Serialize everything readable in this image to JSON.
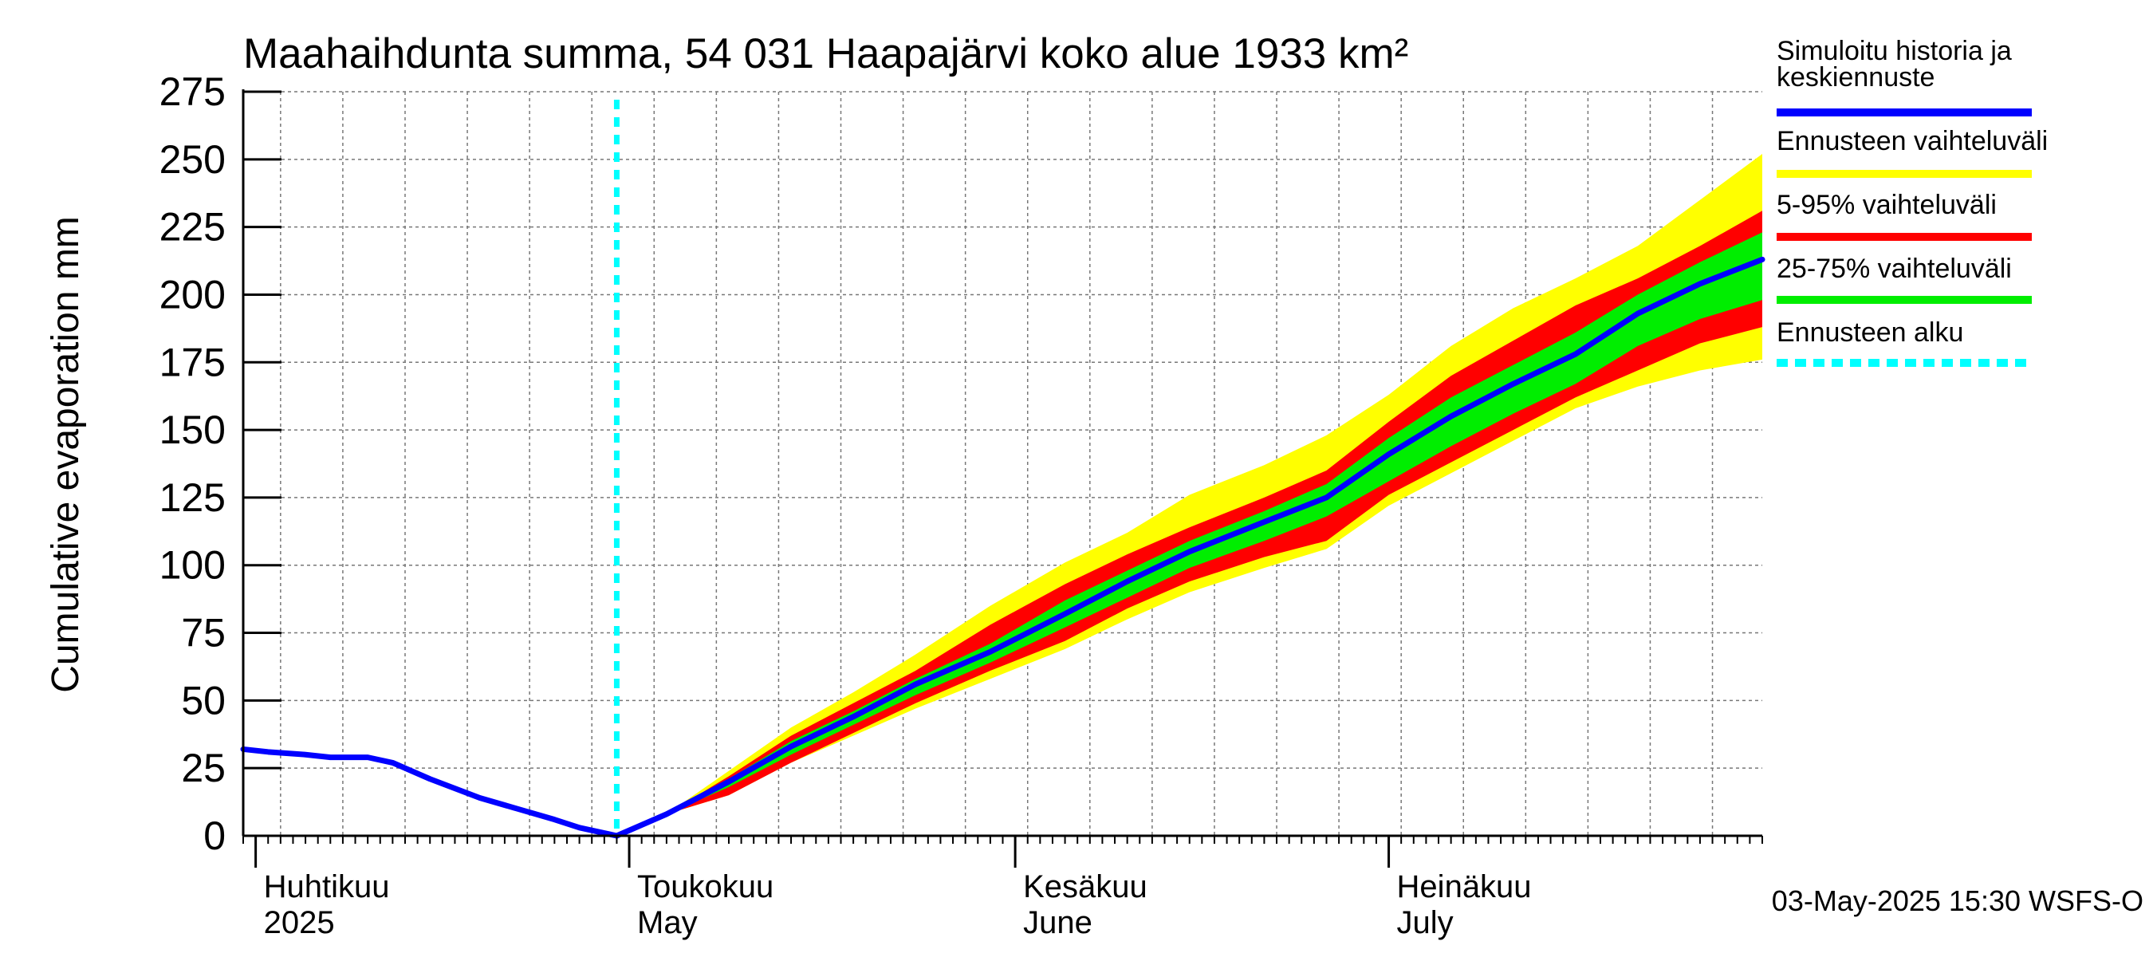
{
  "chart_data": {
    "type": "area",
    "title": "Maahaihdunta summa, 54 031 Haapajärvi koko alue 1933 km²",
    "ylabel": "Cumulative evaporation   mm",
    "xlabel": "",
    "ylim": [
      0,
      275
    ],
    "yticks": [
      0,
      25,
      50,
      75,
      100,
      125,
      150,
      175,
      200,
      225,
      250,
      275
    ],
    "xlim": [
      "2025-03-31",
      "2025-07-31"
    ],
    "x_month_labels": [
      {
        "date": "2025-04-01",
        "line1": "Huhtikuu",
        "line2": "2025"
      },
      {
        "date": "2025-05-01",
        "line1": "Toukokuu",
        "line2": "May"
      },
      {
        "date": "2025-06-01",
        "line1": "Kesäkuu",
        "line2": "June"
      },
      {
        "date": "2025-07-01",
        "line1": "Heinäkuu",
        "line2": "July"
      }
    ],
    "grid": true,
    "forecast_start": "2025-04-30",
    "footer": "03-May-2025 15:30 WSFS-O",
    "legend_placement": "right",
    "legend": [
      {
        "label": "Simuloitu historia ja keskiennuste",
        "color": "#0000ff",
        "style": "solid"
      },
      {
        "label": "Ennusteen vaihteluväli",
        "color": "#ffff00",
        "style": "solid"
      },
      {
        "label": "5-95% vaihteluväli",
        "color": "#ff0000",
        "style": "solid"
      },
      {
        "label": "25-75% vaihteluväli",
        "color": "#00ee00",
        "style": "solid"
      },
      {
        "label": "Ennusteen alku",
        "color": "#00ffff",
        "style": "dashed"
      }
    ],
    "history": {
      "x": [
        "2025-03-31",
        "2025-04-02",
        "2025-04-05",
        "2025-04-07",
        "2025-04-10",
        "2025-04-12",
        "2025-04-15",
        "2025-04-19",
        "2025-04-22",
        "2025-04-25",
        "2025-04-27",
        "2025-04-30"
      ],
      "y": [
        32,
        31,
        30,
        29,
        29,
        27,
        21,
        14,
        10,
        6,
        3,
        0
      ]
    },
    "forecast": {
      "x": [
        "2025-04-30",
        "2025-05-04",
        "2025-05-09",
        "2025-05-14",
        "2025-05-19",
        "2025-05-24",
        "2025-05-30",
        "2025-06-05",
        "2025-06-10",
        "2025-06-15",
        "2025-06-21",
        "2025-06-26",
        "2025-07-01",
        "2025-07-06",
        "2025-07-11",
        "2025-07-16",
        "2025-07-21",
        "2025-07-26",
        "2025-07-31"
      ],
      "median": [
        0,
        8,
        20,
        33,
        44,
        56,
        68,
        82,
        94,
        105,
        116,
        125,
        141,
        155,
        167,
        178,
        193,
        204,
        213
      ],
      "p25": [
        0,
        8,
        18,
        30,
        41,
        52,
        64,
        77,
        88,
        99,
        109,
        118,
        131,
        144,
        156,
        167,
        181,
        191,
        198
      ],
      "p75": [
        0,
        8,
        21,
        35,
        46,
        58,
        71,
        87,
        98,
        109,
        120,
        130,
        147,
        162,
        174,
        186,
        200,
        212,
        223
      ],
      "p5": [
        0,
        8,
        15,
        27,
        38,
        49,
        61,
        72,
        84,
        94,
        103,
        109,
        126,
        138,
        150,
        162,
        172,
        182,
        188
      ],
      "p95": [
        0,
        8,
        22,
        37,
        49,
        61,
        78,
        93,
        104,
        114,
        125,
        135,
        153,
        170,
        183,
        196,
        206,
        218,
        231
      ],
      "min": [
        0,
        8,
        15,
        27,
        37,
        47,
        58,
        69,
        80,
        90,
        99,
        106,
        122,
        134,
        146,
        158,
        166,
        172,
        176
      ],
      "max": [
        0,
        8,
        24,
        40,
        53,
        67,
        85,
        101,
        112,
        126,
        137,
        148,
        163,
        181,
        195,
        206,
        218,
        235,
        252
      ]
    }
  }
}
